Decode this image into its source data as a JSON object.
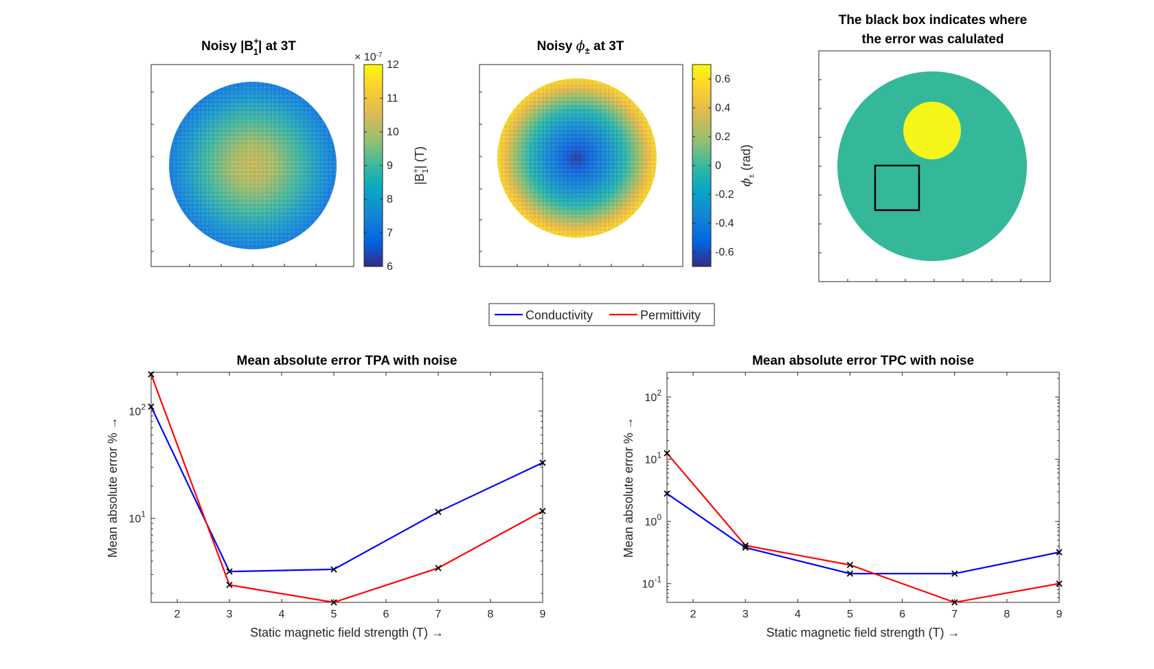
{
  "figure": {
    "panel1": {
      "title_prefix": "Noisy |B",
      "title_sup": "+",
      "title_sub": "1",
      "title_suffix": "| at 3T",
      "colorbar": {
        "exponent_label": "× 10",
        "exponent_power": "-7",
        "ticks": [
          "12",
          "11",
          "10",
          "9",
          "8",
          "7",
          "6"
        ],
        "label_prefix": "|B",
        "label_sup": "+",
        "label_sub": "1",
        "label_suffix": "| (T)",
        "range": [
          6,
          12
        ]
      }
    },
    "panel2": {
      "title_prefix": "Noisy ",
      "title_phi": "ϕ",
      "title_sub": "±",
      "title_suffix": " at 3T",
      "colorbar": {
        "ticks": [
          "0.6",
          "0.4",
          "0.2",
          "0",
          "-0.2",
          "-0.4",
          "-0.6"
        ],
        "label_phi": "ϕ",
        "label_sub": "±",
        "label_suffix": " (rad)",
        "range": [
          -0.7,
          0.7
        ]
      }
    },
    "panel3": {
      "title_line1": "The black box indicates where",
      "title_line2": "the error was calulated"
    },
    "legend": {
      "conductivity": "Conductivity",
      "permittivity": "Permittivity"
    },
    "colors": {
      "conductivity": "#0000ff",
      "permittivity": "#ff0000",
      "marker": "#000000",
      "phantom": "#35b79a",
      "inclusion": "#f5f51a"
    }
  },
  "chart_data": [
    {
      "type": "line",
      "title": "Mean absolute error TPA with noise",
      "xlabel": "Static magnetic field strength (T) →",
      "ylabel": "Mean absolute error % →",
      "yscale": "log",
      "xlim": [
        1.5,
        9
      ],
      "ylim": [
        1.65,
        230
      ],
      "x": [
        1.5,
        3,
        5,
        7,
        9
      ],
      "xticks": [
        "2",
        "3",
        "4",
        "5",
        "6",
        "7",
        "8",
        "9"
      ],
      "yticks": [
        {
          "base": "10",
          "exp": "2",
          "value": 100
        },
        {
          "base": "10",
          "exp": "1",
          "value": 10
        }
      ],
      "series": [
        {
          "name": "Conductivity",
          "values": [
            110,
            3.2,
            3.35,
            11.5,
            33
          ]
        },
        {
          "name": "Permittivity",
          "values": [
            220,
            2.4,
            1.65,
            3.45,
            11.7
          ]
        }
      ]
    },
    {
      "type": "line",
      "title": "Mean absolute error TPC with noise",
      "xlabel": "Static magnetic field strength (T) →",
      "ylabel": "Mean absolute error % →",
      "yscale": "log",
      "xlim": [
        1.5,
        9
      ],
      "ylim": [
        0.05,
        250
      ],
      "x": [
        1.5,
        3,
        5,
        7,
        9
      ],
      "xticks": [
        "2",
        "3",
        "4",
        "5",
        "6",
        "7",
        "8",
        "9"
      ],
      "yticks": [
        {
          "base": "10",
          "exp": "2",
          "value": 100
        },
        {
          "base": "10",
          "exp": "1",
          "value": 10
        },
        {
          "base": "10",
          "exp": "0",
          "value": 1
        },
        {
          "base": "10",
          "exp": "-1",
          "value": 0.1
        }
      ],
      "series": [
        {
          "name": "Conductivity",
          "values": [
            2.8,
            0.38,
            0.145,
            0.145,
            0.32
          ]
        },
        {
          "name": "Permittivity",
          "values": [
            12.5,
            0.41,
            0.2,
            0.05,
            0.1
          ]
        }
      ]
    }
  ]
}
